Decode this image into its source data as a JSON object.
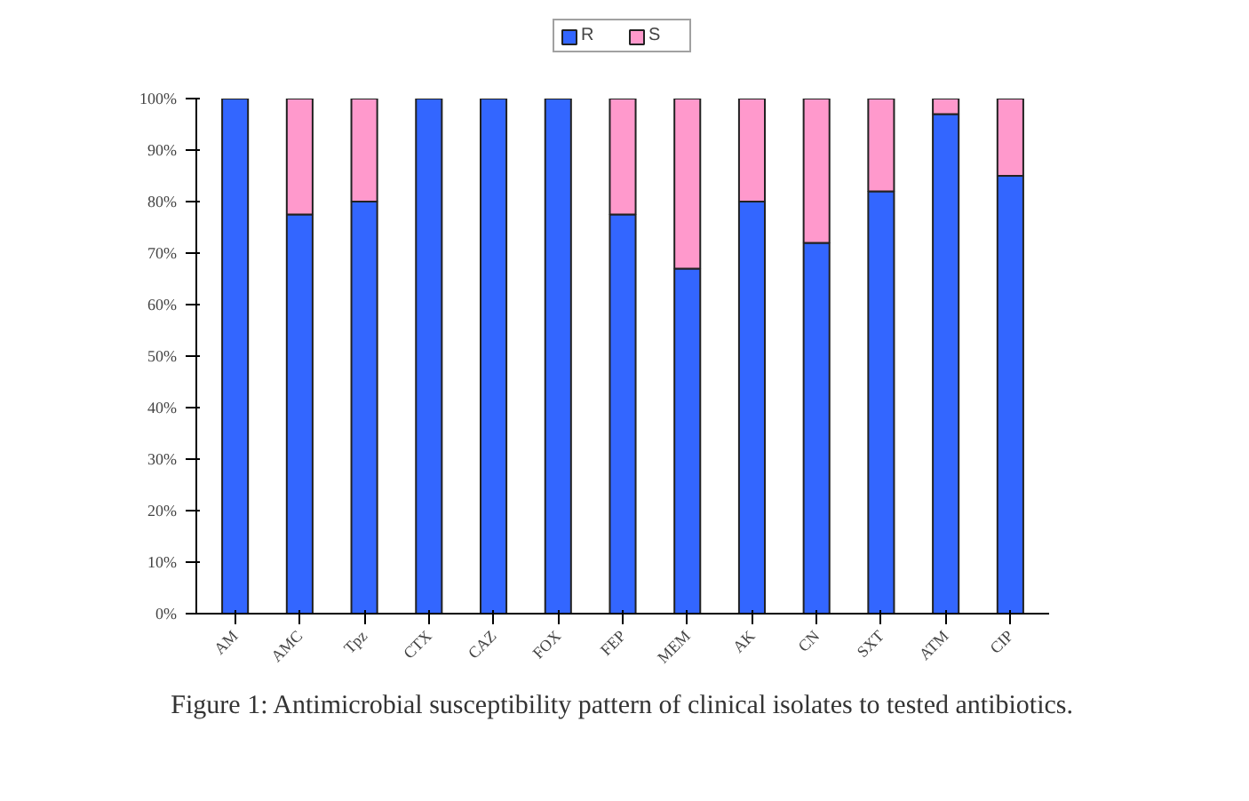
{
  "chart_data": {
    "type": "bar",
    "stacked": true,
    "categories": [
      "AM",
      "AMC",
      "Tpz",
      "CTX",
      "CAZ",
      "FOX",
      "FEP",
      "MEM",
      "AK",
      "CN",
      "SXT",
      "ATM",
      "CIP"
    ],
    "series": [
      {
        "name": "R",
        "color": "#3366ff",
        "values": [
          100,
          77.5,
          80,
          100,
          100,
          100,
          77.5,
          67,
          80,
          72,
          82,
          97,
          85
        ]
      },
      {
        "name": "S",
        "color": "#ff99cc",
        "values": [
          0,
          22.5,
          20,
          0,
          0,
          0,
          22.5,
          33,
          20,
          28,
          18,
          3,
          15
        ]
      }
    ],
    "ylim": [
      0,
      100
    ],
    "yticks": [
      {
        "value": 0,
        "label": "0%"
      },
      {
        "value": 10,
        "label": "10%"
      },
      {
        "value": 20,
        "label": "20%"
      },
      {
        "value": 30,
        "label": "30%"
      },
      {
        "value": 40,
        "label": "40%"
      },
      {
        "value": 50,
        "label": "50%"
      },
      {
        "value": 60,
        "label": "60%"
      },
      {
        "value": 70,
        "label": "70%"
      },
      {
        "value": 80,
        "label": "80%"
      },
      {
        "value": 90,
        "label": "90%"
      },
      {
        "value": 100,
        "label": "100%"
      }
    ],
    "grid": false,
    "legend": "top",
    "annotations": [
      "Figure 1: Antimicrobial susceptibility pattern of clinical isolates to tested antibiotics."
    ]
  }
}
